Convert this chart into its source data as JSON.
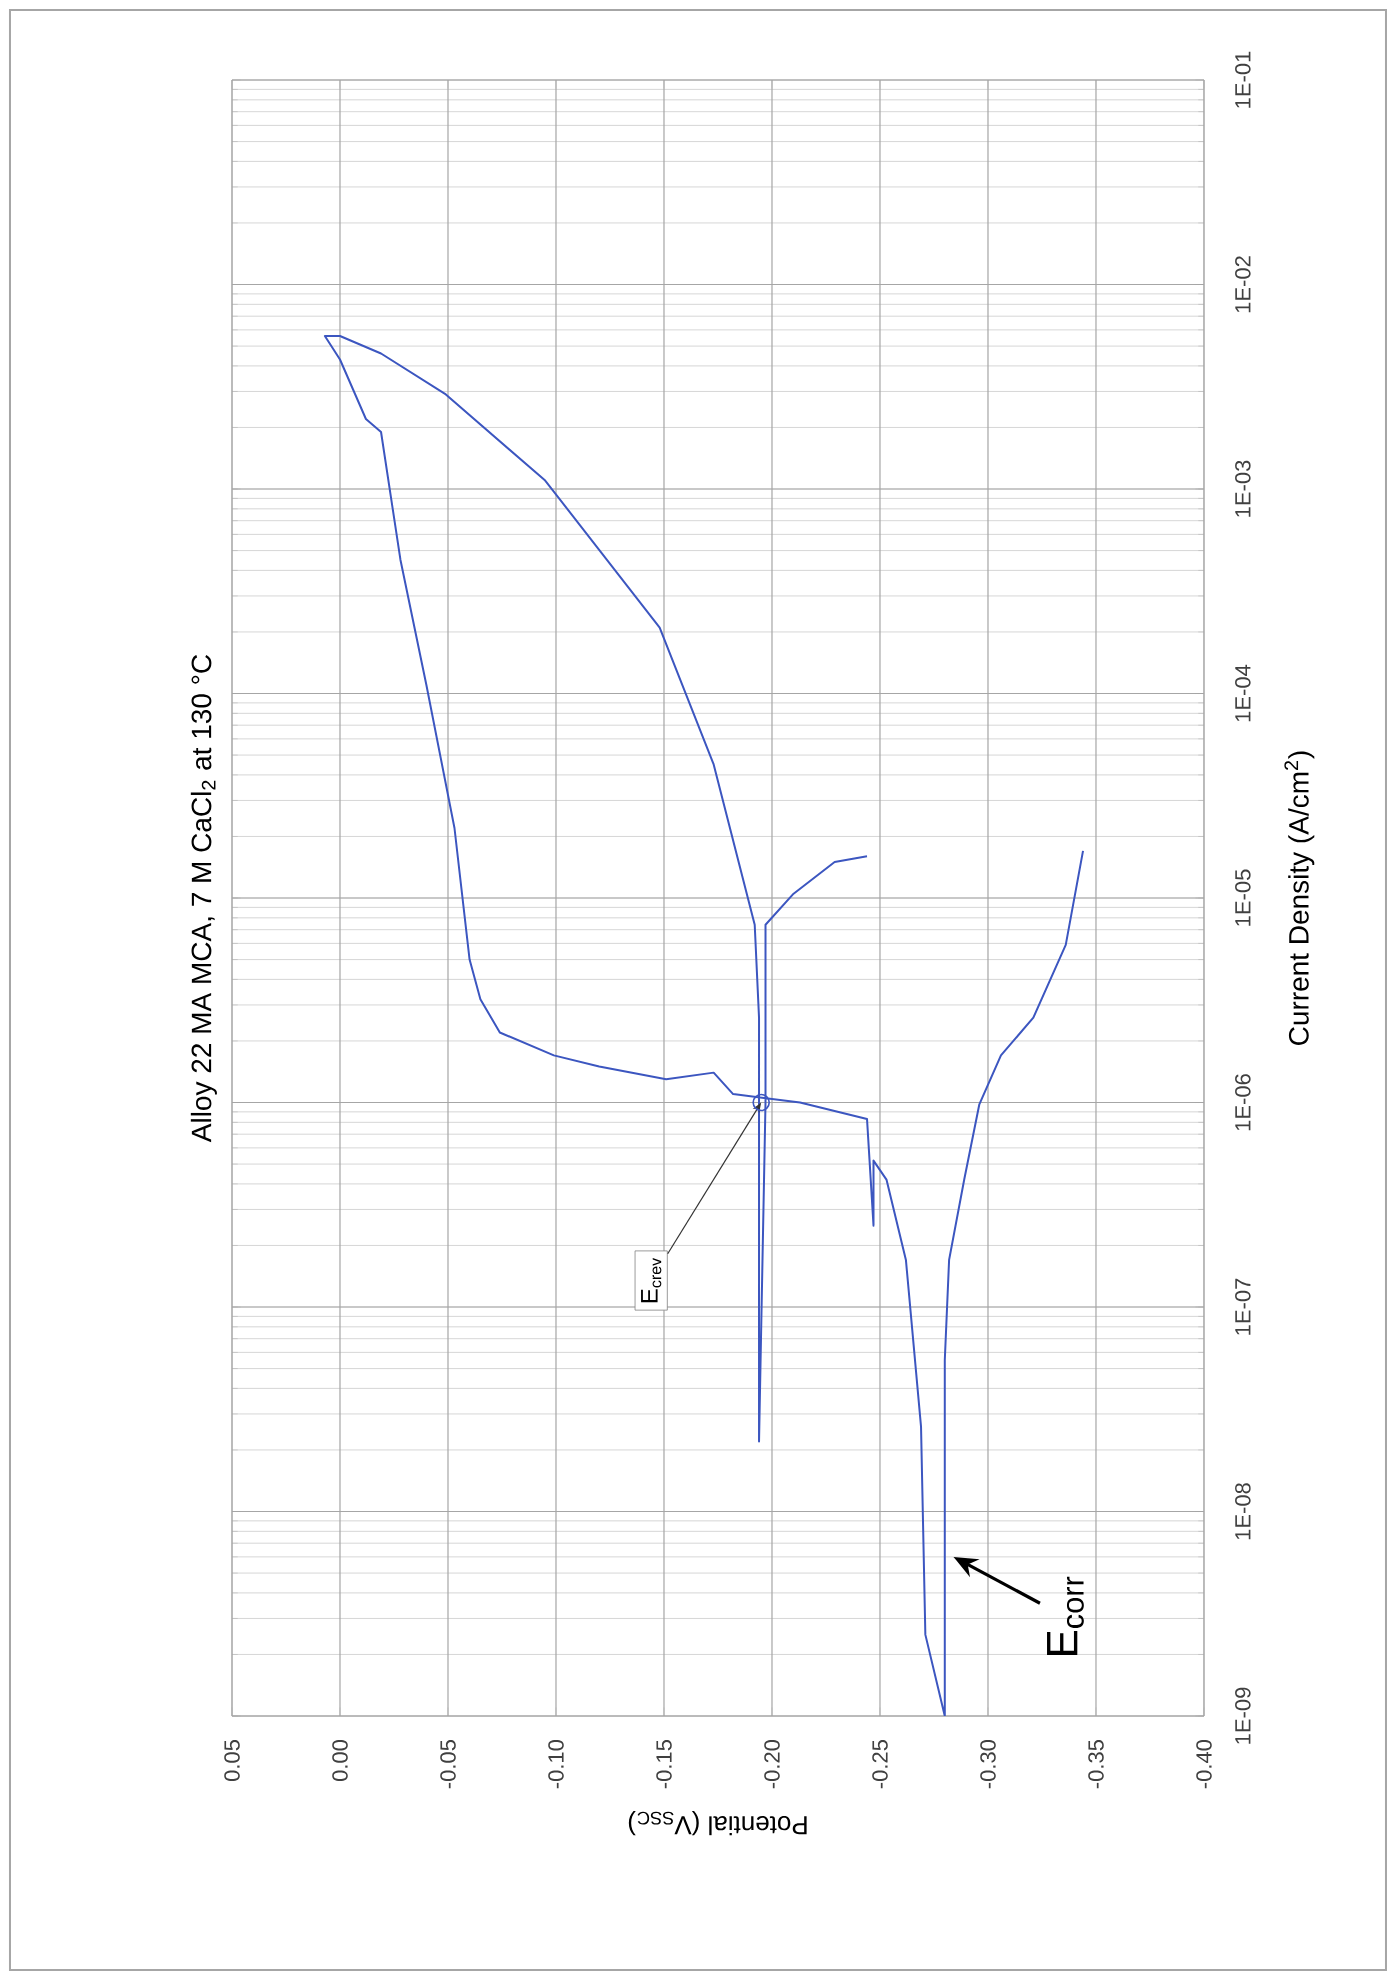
{
  "chart_data": {
    "type": "line",
    "title": "Alloy 22 MA MCA, 7 M CaCl$_{2}$ at 130 °C",
    "xlabel": "Potential (V$_{SSC}$)",
    "ylabel": "Current Density (A/cm$^{2}$)",
    "log": "y",
    "grid": true,
    "color": "#3c56c0",
    "ylim": [
      1e-09,
      0.1
    ],
    "yticks": [
      {
        "value": 1e-09,
        "label": "1E-09"
      },
      {
        "value": 1e-08,
        "label": "1E-08"
      },
      {
        "value": 1e-07,
        "label": "1E-07"
      },
      {
        "value": 1e-06,
        "label": "1E-06"
      },
      {
        "value": 1e-05,
        "label": "1E-05"
      },
      {
        "value": 0.0001,
        "label": "1E-04"
      },
      {
        "value": 0.001,
        "label": "1E-03"
      },
      {
        "value": 0.01,
        "label": "1E-02"
      },
      {
        "value": 0.1,
        "label": "1E-01"
      }
    ],
    "xlim": [
      0.05,
      -0.4
    ],
    "xticks": [
      {
        "value": 0.05,
        "label": "0.05"
      },
      {
        "value": 0,
        "label": "0.00"
      },
      {
        "value": -0.05,
        "label": "-0.05"
      },
      {
        "value": -0.1,
        "label": "-0.10"
      },
      {
        "value": -0.15,
        "label": "-0.15"
      },
      {
        "value": -0.2,
        "label": "-0.20"
      },
      {
        "value": -0.25,
        "label": "-0.25"
      },
      {
        "value": -0.3,
        "label": "-0.30"
      },
      {
        "value": -0.35,
        "label": "-0.35"
      },
      {
        "value": -0.4,
        "label": "-0.40"
      }
    ],
    "values": [
      1.7e-05,
      5.9e-06,
      2.6e-06,
      1.7e-06,
      9.8e-07,
      4.2e-07,
      1.7e-07,
      5.5e-08,
      1e-09,
      2.5e-09,
      2.6e-08,
      1.7e-07,
      4.2e-07,
      5.2e-07,
      2.5e-07,
      8.3e-07,
      1e-06,
      1.1e-06,
      1.4e-06,
      1.3e-06,
      1.5e-06,
      1.7e-06,
      2.2e-06,
      3.2e-06,
      5e-06,
      2.2e-05,
      0.00011,
      0.00045,
      0.0019,
      0.0022,
      0.0043,
      0.0056,
      0.0056,
      0.0046,
      0.0029,
      0.0011,
      0.00021,
      4.5e-05,
      7.4e-06,
      2.6e-06,
      2.2e-08,
      1e-06,
      7.4e-06,
      1.05e-05,
      1.5e-05,
      1.6e-05
    ],
    "x": [
      -0.344,
      -0.336,
      -0.321,
      -0.306,
      -0.296,
      -0.289,
      -0.282,
      -0.28,
      -0.28,
      -0.271,
      -0.269,
      -0.262,
      -0.253,
      -0.247,
      -0.247,
      -0.244,
      -0.213,
      -0.182,
      -0.173,
      -0.151,
      -0.12,
      -0.099,
      -0.074,
      -0.065,
      -0.06,
      -0.053,
      -0.04,
      -0.028,
      -0.019,
      -0.012,
      0.0,
      0.007,
      0.0,
      -0.019,
      -0.049,
      -0.095,
      -0.148,
      -0.173,
      -0.192,
      -0.194,
      -0.194,
      -0.197,
      -0.197,
      -0.21,
      -0.229,
      -0.244
    ],
    "annotations": [
      {
        "text": "E$_{crev}$",
        "x": -0.195,
        "y": 1e-06
      },
      {
        "text": "E$_{corr}$",
        "x": -0.284,
        "y": 6e-09
      }
    ]
  }
}
